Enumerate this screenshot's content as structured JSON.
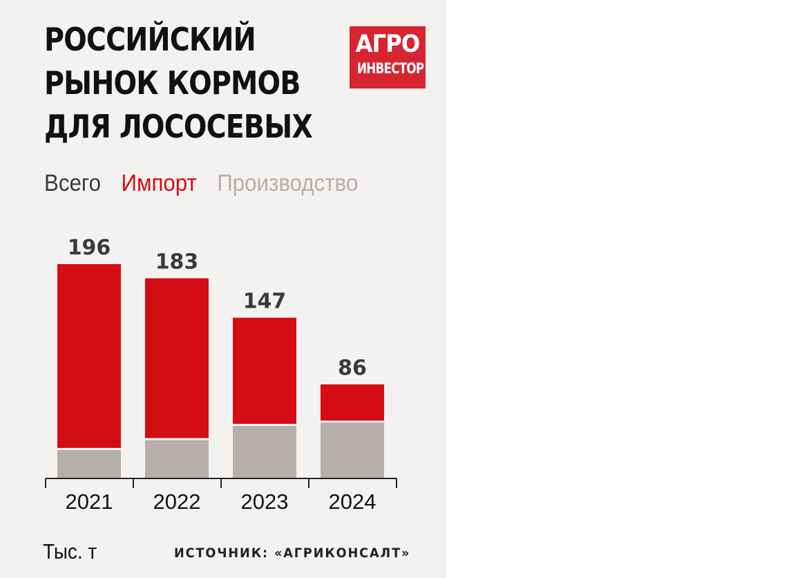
{
  "title_lines": [
    "РОССИЙСКИЙ",
    "РЫНОК КОРМОВ",
    "ДЛЯ ЛОСОСЕВЫХ"
  ],
  "logo": {
    "top": "АГРО",
    "bottom": "ИНВЕСТОР"
  },
  "unit": "Тыс. т",
  "source": "ИСТОЧНИК: «АГРИКОНСАЛТ»",
  "colors": {
    "background": "#f4f2f1",
    "import": "#d40c14",
    "production": "#b5aeab",
    "total": "#3a3a3a",
    "logo": "#d62431"
  },
  "chart_data": {
    "type": "bar",
    "stacked": true,
    "categories": [
      "2021",
      "2022",
      "2023",
      "2024"
    ],
    "totals": [
      196,
      183,
      147,
      86
    ],
    "legend": [
      "Всего",
      "Импорт",
      "Производство"
    ],
    "series": [
      {
        "name": "Производство",
        "values": [
          26,
          35,
          48,
          51
        ]
      },
      {
        "name": "Импорт",
        "values": [
          170,
          148,
          99,
          35
        ]
      }
    ],
    "ylim": [
      0,
      196
    ],
    "grid": false,
    "legend_placement": "top-left"
  }
}
